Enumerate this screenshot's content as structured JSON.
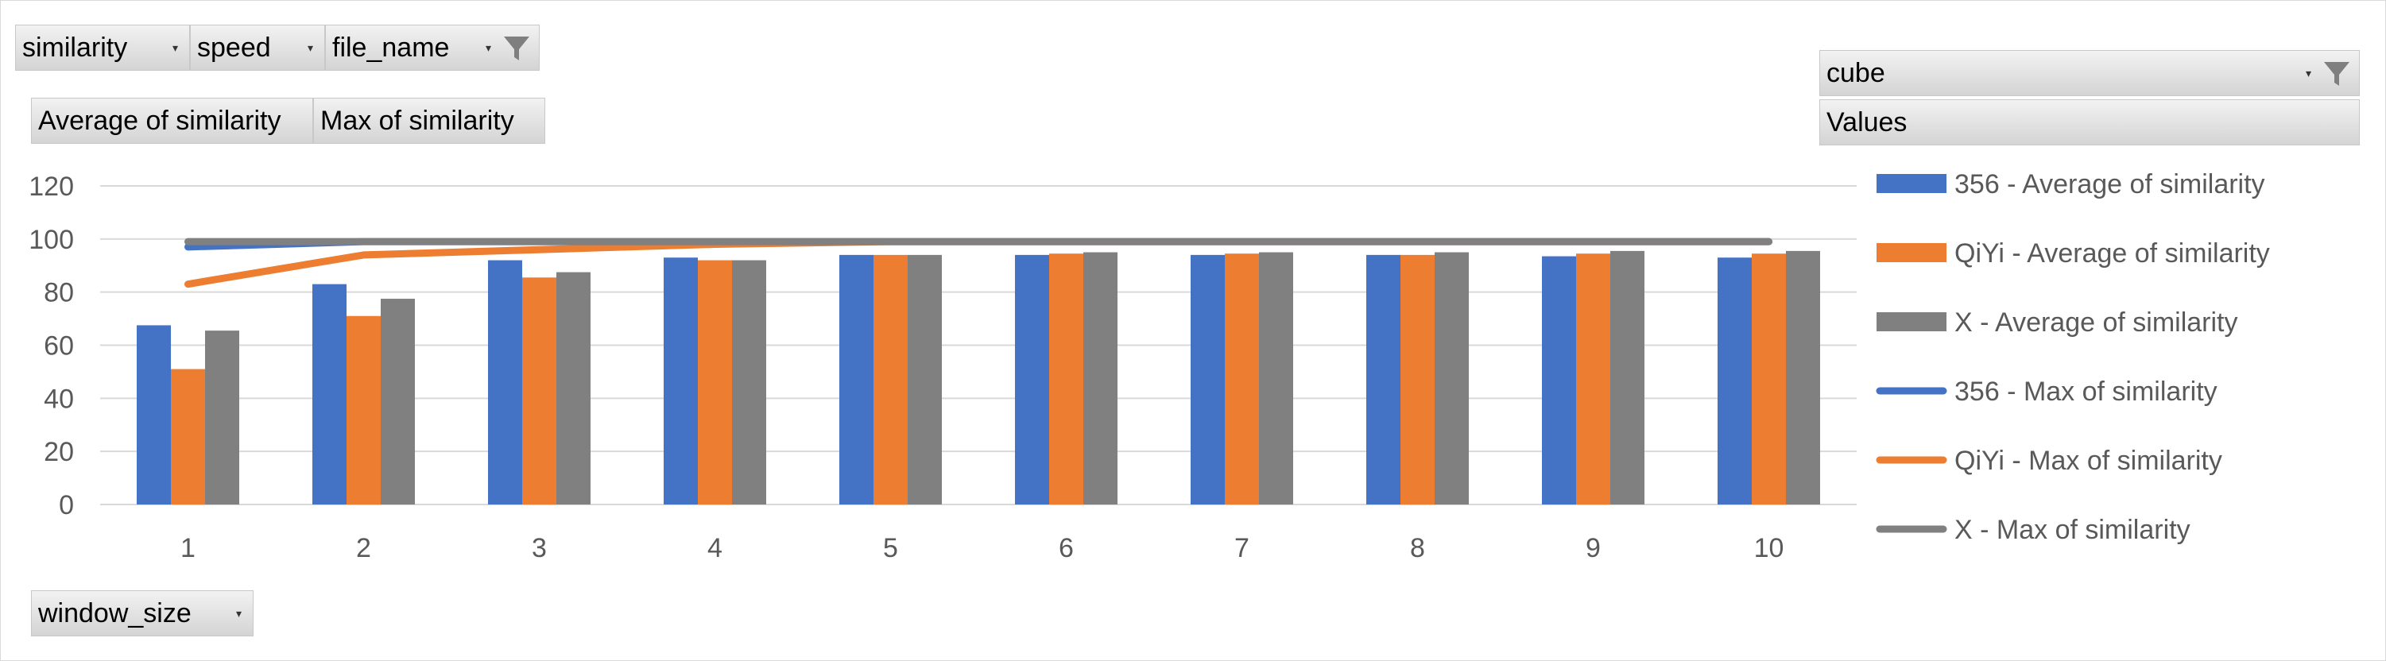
{
  "filters": {
    "similarity": "similarity",
    "speed": "speed",
    "file_name": "file_name",
    "cube": "cube",
    "values": "Values",
    "window_size": "window_size",
    "avg_button": "Average of similarity",
    "max_button": "Max of similarity"
  },
  "colors": {
    "s356": "#4472C4",
    "qiyi": "#ED7D31",
    "x": "#808080",
    "grid": "#d9d9d9"
  },
  "chart_data": {
    "type": "bar",
    "categories": [
      "1",
      "2",
      "3",
      "4",
      "5",
      "6",
      "7",
      "8",
      "9",
      "10"
    ],
    "ylim": [
      0,
      120
    ],
    "yticks": [
      0,
      20,
      40,
      60,
      80,
      100,
      120
    ],
    "series": [
      {
        "name": "356 - Average of similarity",
        "type": "bar",
        "color": "#4472C4",
        "values": [
          67.5,
          83,
          92,
          93,
          94,
          94,
          94,
          94,
          93.5,
          93
        ]
      },
      {
        "name": "QiYi - Average of similarity",
        "type": "bar",
        "color": "#ED7D31",
        "values": [
          51,
          71,
          85.5,
          92,
          94,
          94.5,
          94.5,
          94,
          94.5,
          94.5
        ]
      },
      {
        "name": "X - Average of similarity",
        "type": "bar",
        "color": "#808080",
        "values": [
          65.5,
          77.5,
          87.5,
          92,
          94,
          95,
          95,
          95,
          95.5,
          95.5
        ]
      },
      {
        "name": "356 - Max of similarity",
        "type": "line",
        "color": "#4472C4",
        "values": [
          97,
          99,
          99,
          99,
          99,
          99,
          99,
          99,
          99,
          99
        ]
      },
      {
        "name": "QiYi - Max of similarity",
        "type": "line",
        "color": "#ED7D31",
        "values": [
          83,
          94,
          96,
          98,
          99,
          99,
          99,
          99,
          99,
          99
        ]
      },
      {
        "name": "X - Max of similarity",
        "type": "line",
        "color": "#808080",
        "values": [
          99,
          99,
          99,
          99,
          99,
          99,
          99,
          99,
          99,
          99
        ]
      }
    ]
  }
}
